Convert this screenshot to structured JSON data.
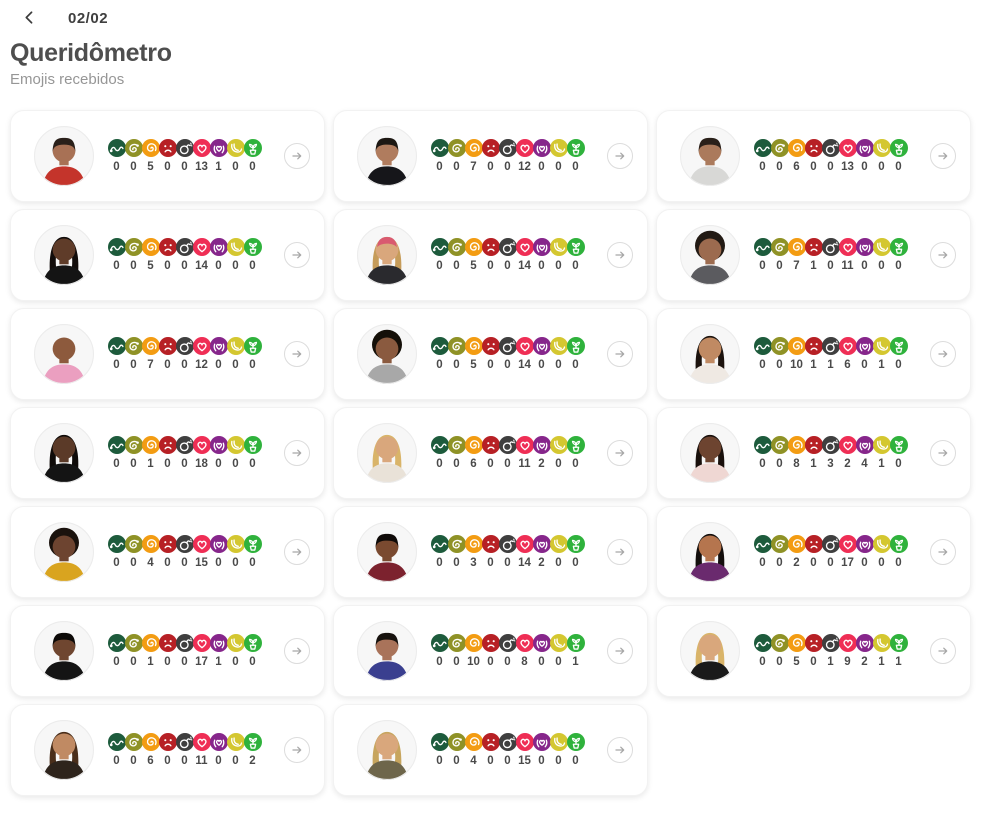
{
  "header": {
    "back_icon": "chevron-left",
    "page_indicator": "02/02",
    "title": "Queridômetro",
    "subtitle": "Emojis recebidos"
  },
  "colors": {
    "card_background": "#ffffff",
    "count_text": "#4a4a4a",
    "title_text": "#4e4e4e",
    "subtitle_text": "#969696",
    "arrow_icon": "#a8a8a8"
  },
  "emojis": [
    {
      "id": "snake",
      "label": "cobra",
      "color": "#1d5b3c"
    },
    {
      "id": "worm",
      "label": "minhoca",
      "color": "#8f9226"
    },
    {
      "id": "swirl-face",
      "label": "hipnotizado",
      "color": "#f39c12"
    },
    {
      "id": "sad-face",
      "label": "carinha triste",
      "color": "#b72025"
    },
    {
      "id": "bomb",
      "label": "bomba",
      "color": "#3f3f3f"
    },
    {
      "id": "heart",
      "label": "coração",
      "color": "#ef2e55"
    },
    {
      "id": "heart-hands",
      "label": "mãos em coração",
      "color": "#86268b"
    },
    {
      "id": "banana",
      "label": "banana",
      "color": "#d4c730"
    },
    {
      "id": "plant",
      "label": "plantinha",
      "color": "#2fb23c"
    }
  ],
  "cards": [
    {
      "person": "participant-1",
      "avatar": {
        "style": "short",
        "skin": "#a87155",
        "hair": "#2a201a",
        "shirt": "#c4342b"
      },
      "counts": [
        0,
        0,
        5,
        0,
        0,
        13,
        1,
        0,
        0
      ]
    },
    {
      "person": "participant-2",
      "avatar": {
        "style": "short",
        "skin": "#b07c5e",
        "hair": "#1d1813",
        "shirt": "#16161a"
      },
      "counts": [
        0,
        0,
        7,
        0,
        0,
        12,
        0,
        0,
        0
      ]
    },
    {
      "person": "participant-3",
      "avatar": {
        "style": "short",
        "skin": "#ab7a5c",
        "hair": "#2a201a",
        "shirt": "#d8d8d6"
      },
      "counts": [
        0,
        0,
        6,
        0,
        0,
        13,
        0,
        0,
        0
      ]
    },
    {
      "person": "participant-4",
      "avatar": {
        "style": "long",
        "skin": "#5f3c29",
        "hair": "#120d0b",
        "shirt": "#141414"
      },
      "counts": [
        0,
        0,
        5,
        0,
        0,
        14,
        0,
        0,
        0
      ]
    },
    {
      "person": "participant-5",
      "avatar": {
        "style": "cap-long",
        "skin": "#d9a77c",
        "hair": "#c69c5a",
        "shirt": "#2a2a2e",
        "accessory": "#d95a70"
      },
      "counts": [
        0,
        0,
        5,
        0,
        0,
        14,
        0,
        0,
        0
      ]
    },
    {
      "person": "participant-6",
      "avatar": {
        "style": "afro",
        "skin": "#9c6b4f",
        "hair": "#221a14",
        "shirt": "#5b5b5f"
      },
      "counts": [
        0,
        0,
        7,
        1,
        0,
        11,
        0,
        0,
        0
      ]
    },
    {
      "person": "participant-7",
      "avatar": {
        "style": "bald",
        "skin": "#8d5a3d",
        "hair": "#8d5a3d",
        "shirt": "#eb9fc0"
      },
      "counts": [
        0,
        0,
        7,
        0,
        0,
        12,
        0,
        0,
        0
      ]
    },
    {
      "person": "participant-8",
      "avatar": {
        "style": "afro",
        "skin": "#8a5a3f",
        "hair": "#151009",
        "shirt": "#a8a8a8"
      },
      "counts": [
        0,
        0,
        5,
        0,
        0,
        14,
        0,
        0,
        0
      ]
    },
    {
      "person": "participant-9",
      "avatar": {
        "style": "long",
        "skin": "#c08a63",
        "hair": "#1c130e",
        "shirt": "#efe9e3"
      },
      "counts": [
        0,
        0,
        10,
        1,
        1,
        6,
        0,
        1,
        0
      ]
    },
    {
      "person": "participant-10",
      "avatar": {
        "style": "long",
        "skin": "#5b3a28",
        "hair": "#0f0b09",
        "shirt": "#141414"
      },
      "counts": [
        0,
        0,
        1,
        0,
        0,
        18,
        0,
        0,
        0
      ]
    },
    {
      "person": "participant-11",
      "avatar": {
        "style": "long",
        "skin": "#d9a77c",
        "hair": "#d9b469",
        "shirt": "#e9e2d8"
      },
      "counts": [
        0,
        0,
        6,
        0,
        0,
        11,
        2,
        0,
        0
      ]
    },
    {
      "person": "participant-12",
      "avatar": {
        "style": "long",
        "skin": "#6d4430",
        "hair": "#19100c",
        "shirt": "#efd7d3"
      },
      "counts": [
        0,
        0,
        8,
        1,
        3,
        2,
        4,
        1,
        0
      ]
    },
    {
      "person": "participant-13",
      "avatar": {
        "style": "afro",
        "skin": "#6d4430",
        "hair": "#1a120d",
        "shirt": "#d9a41f"
      },
      "counts": [
        0,
        0,
        4,
        0,
        0,
        15,
        0,
        0,
        0
      ]
    },
    {
      "person": "participant-14",
      "avatar": {
        "style": "short",
        "skin": "#7a4a30",
        "hair": "#0f0b09",
        "shirt": "#7c222e"
      },
      "counts": [
        0,
        0,
        3,
        0,
        0,
        14,
        2,
        0,
        0
      ]
    },
    {
      "person": "participant-15",
      "avatar": {
        "style": "long",
        "skin": "#b5754e",
        "hair": "#140f0d",
        "shirt": "#6a2a6e"
      },
      "counts": [
        0,
        0,
        2,
        0,
        0,
        17,
        0,
        0,
        0
      ]
    },
    {
      "person": "participant-16",
      "avatar": {
        "style": "short",
        "skin": "#6f4630",
        "hair": "#0d0a08",
        "shirt": "#141414"
      },
      "counts": [
        0,
        0,
        1,
        0,
        0,
        17,
        1,
        0,
        0
      ]
    },
    {
      "person": "participant-17",
      "avatar": {
        "style": "short",
        "skin": "#a9735a",
        "hair": "#17120e",
        "shirt": "#3a3f8f"
      },
      "counts": [
        0,
        0,
        10,
        0,
        0,
        8,
        0,
        0,
        1
      ]
    },
    {
      "person": "participant-18",
      "avatar": {
        "style": "long",
        "skin": "#d9a77c",
        "hair": "#d9b469",
        "shirt": "#1a1a1a"
      },
      "counts": [
        0,
        0,
        5,
        0,
        1,
        9,
        2,
        1,
        1
      ]
    },
    {
      "person": "participant-19",
      "avatar": {
        "style": "long",
        "skin": "#c08a63",
        "hair": "#4a2e1a",
        "shirt": "#2e241c"
      },
      "counts": [
        0,
        0,
        6,
        0,
        0,
        11,
        0,
        0,
        2
      ]
    },
    {
      "person": "participant-20",
      "avatar": {
        "style": "long",
        "skin": "#d9a77c",
        "hair": "#c7a55e",
        "shirt": "#6e664b"
      },
      "counts": [
        0,
        0,
        4,
        0,
        0,
        15,
        0,
        0,
        0
      ]
    }
  ]
}
